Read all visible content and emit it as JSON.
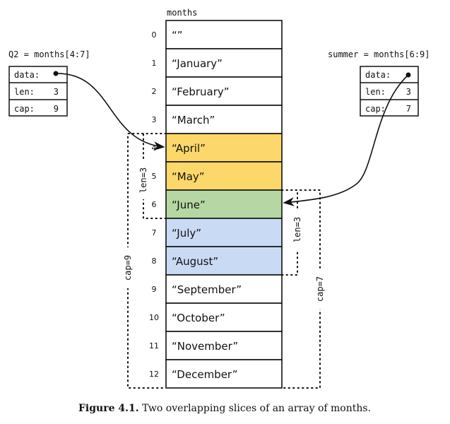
{
  "array": {
    "name": "months",
    "indices": [
      "0",
      "1",
      "2",
      "3",
      "4",
      "5",
      "6",
      "7",
      "8",
      "9",
      "10",
      "11",
      "12"
    ],
    "values": [
      "“”",
      "“January”",
      "“February”",
      "“March”",
      "“April”",
      "“May”",
      "“June”",
      "“July”",
      "“August”",
      "“September”",
      "“October”",
      "“November”",
      "“December”"
    ],
    "highlight": [
      "none",
      "none",
      "none",
      "none",
      "Q2",
      "Q2",
      "both",
      "summer",
      "summer",
      "none",
      "none",
      "none",
      "none"
    ]
  },
  "colors": {
    "Q2": "#fcd86b",
    "both": "#b6d7a3",
    "summer": "#c9daf5",
    "none": "#ffffff"
  },
  "q2": {
    "label": "Q2 = months[4:7]",
    "data_label": "data:",
    "len_label": "len:",
    "len": "3",
    "cap_label": "cap:",
    "cap": "9",
    "len_bracket": "len=3",
    "cap_bracket": "cap=9"
  },
  "summer": {
    "label": "summer = months[6:9]",
    "data_label": "data:",
    "len_label": "len:",
    "len": "3",
    "cap_label": "cap:",
    "cap": "7",
    "len_bracket": "len=3",
    "cap_bracket": "cap=7"
  },
  "caption": {
    "figure": "Figure 4.1.",
    "text": "Two overlapping slices of an array of months."
  }
}
